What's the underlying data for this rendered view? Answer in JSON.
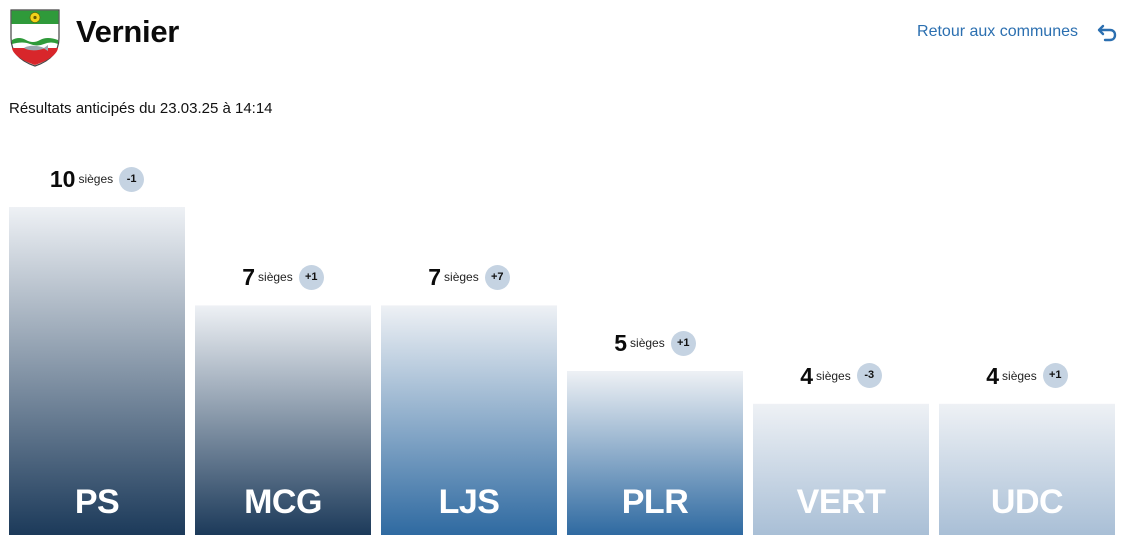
{
  "header": {
    "title": "Vernier",
    "back_label": "Retour aux communes",
    "crest_icon": "vernier-coat-of-arms-icon",
    "back_icon": "return-arrow-icon"
  },
  "subtitle": "Résultats anticipés du 23.03.25 à 14:14",
  "colors": {
    "bar_top": "#eef1f5",
    "bar_bottom_dark": "#1c3a5a",
    "bar_bottom_mid": "#2f6aa1",
    "bar_bottom_light": "#a9bfd6",
    "change_badge": "#c5d3e2",
    "link": "#2b6fb0"
  },
  "chart_data": {
    "type": "bar",
    "categories": [
      "PS",
      "MCG",
      "LJS",
      "PLR",
      "VERT",
      "UDC"
    ],
    "values": [
      10,
      7,
      7,
      5,
      4,
      4
    ],
    "unit": "sièges",
    "changes": [
      "-1",
      "+1",
      "+7",
      "+1",
      "-3",
      "+1"
    ],
    "ylim": [
      0,
      10
    ],
    "grid": false
  }
}
